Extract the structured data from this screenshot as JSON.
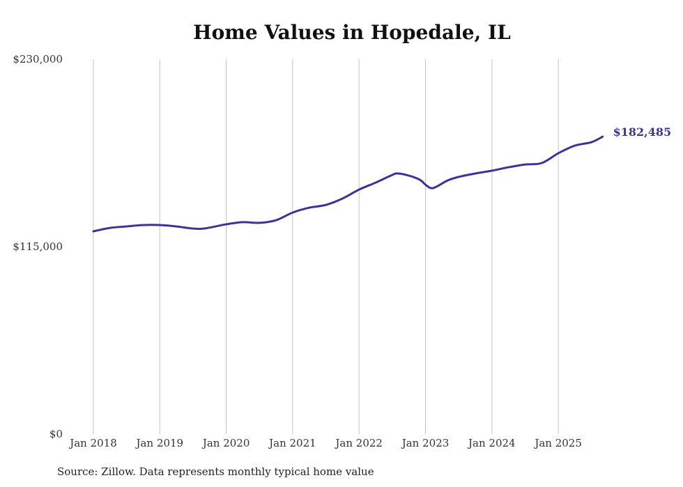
{
  "chart_data": {
    "type": "line",
    "title": "Home Values in Hopedale, IL",
    "source": "Source: Zillow. Data represents monthly typical home value",
    "xlabel": "",
    "ylabel": "",
    "ylim": [
      0,
      230000
    ],
    "y_ticks": [
      {
        "value": 0,
        "label": "$0"
      },
      {
        "value": 115000,
        "label": "$115,000"
      },
      {
        "value": 230000,
        "label": "$230,000"
      }
    ],
    "x_ticks": [
      {
        "value": "2018-01",
        "label": "Jan 2018"
      },
      {
        "value": "2019-01",
        "label": "Jan 2019"
      },
      {
        "value": "2020-01",
        "label": "Jan 2020"
      },
      {
        "value": "2021-01",
        "label": "Jan 2021"
      },
      {
        "value": "2022-01",
        "label": "Jan 2022"
      },
      {
        "value": "2023-01",
        "label": "Jan 2023"
      },
      {
        "value": "2024-01",
        "label": "Jan 2024"
      },
      {
        "value": "2025-01",
        "label": "Jan 2025"
      }
    ],
    "grid": "vertical",
    "line_color": "#3b3497",
    "series": [
      {
        "name": "Typical home value",
        "end_label": "$182,485",
        "x": [
          "2018-01",
          "2018-04",
          "2018-07",
          "2018-10",
          "2019-01",
          "2019-04",
          "2019-07",
          "2019-09",
          "2020-01",
          "2020-04",
          "2020-07",
          "2020-10",
          "2021-01",
          "2021-04",
          "2021-07",
          "2021-10",
          "2022-01",
          "2022-04",
          "2022-07",
          "2022-08",
          "2022-10",
          "2022-12",
          "2023-01",
          "2023-02",
          "2023-03",
          "2023-05",
          "2023-07",
          "2023-10",
          "2024-01",
          "2024-04",
          "2024-07",
          "2024-10",
          "2025-01",
          "2025-04",
          "2025-07",
          "2025-09"
        ],
        "values": [
          124400,
          126500,
          127400,
          128250,
          128250,
          127400,
          126100,
          126100,
          128700,
          130000,
          129600,
          131200,
          135900,
          138900,
          140600,
          144500,
          150000,
          154300,
          159000,
          159900,
          158600,
          156000,
          153000,
          150900,
          151800,
          155600,
          157800,
          159900,
          161600,
          163700,
          165400,
          166300,
          172300,
          177000,
          179100,
          182485
        ]
      }
    ]
  }
}
